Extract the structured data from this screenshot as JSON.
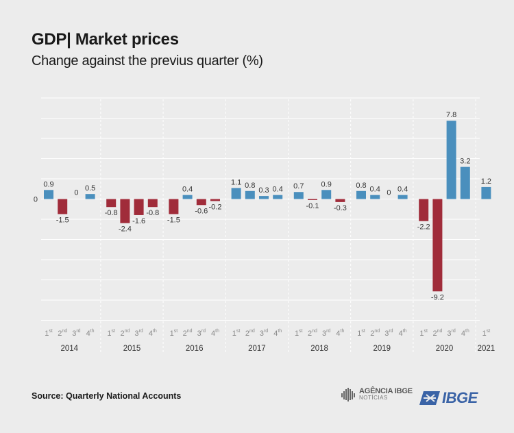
{
  "header": {
    "title": "GDP| Market prices",
    "subtitle": "Change against the previus quarter (%)"
  },
  "footer": {
    "source": "Source: Quarterly National Accounts",
    "agencia_name": "AGÊNCIA IBGE",
    "agencia_sub": "NOTÍCIAS",
    "ibge_logo_text": "IBGE"
  },
  "colors": {
    "positive": "#4a8fbd",
    "negative": "#a02c3a",
    "grid": "#ffffff",
    "text": "#333333",
    "axis_text": "#888888"
  },
  "chart_data": {
    "type": "bar",
    "title": "GDP| Market prices",
    "subtitle": "Change against the previus quarter (%)",
    "y_tick_labels": [
      "0"
    ],
    "ylim": [
      -9.2,
      7.8
    ],
    "grid": true,
    "years": [
      {
        "label": "2014",
        "quarters": [
          {
            "q": "1",
            "sup": "st",
            "value": 0.9,
            "label": "0.9"
          },
          {
            "q": "2",
            "sup": "nd",
            "value": -1.5,
            "label": "-1.5"
          },
          {
            "q": "3",
            "sup": "rd",
            "value": 0,
            "label": "0"
          },
          {
            "q": "4",
            "sup": "th",
            "value": 0.5,
            "label": "0.5"
          }
        ]
      },
      {
        "label": "2015",
        "quarters": [
          {
            "q": "1",
            "sup": "st",
            "value": -0.8,
            "label": "-0.8"
          },
          {
            "q": "2",
            "sup": "nd",
            "value": -2.4,
            "label": "-2.4"
          },
          {
            "q": "3",
            "sup": "rd",
            "value": -1.6,
            "label": "-1.6"
          },
          {
            "q": "4",
            "sup": "th",
            "value": -0.8,
            "label": "-0.8"
          }
        ]
      },
      {
        "label": "2016",
        "quarters": [
          {
            "q": "1",
            "sup": "st",
            "value": -1.5,
            "label": "-1.5"
          },
          {
            "q": "2",
            "sup": "nd",
            "value": 0.4,
            "label": "0.4"
          },
          {
            "q": "3",
            "sup": "rd",
            "value": -0.6,
            "label": "-0.6"
          },
          {
            "q": "4",
            "sup": "th",
            "value": -0.2,
            "label": "-0.2"
          }
        ]
      },
      {
        "label": "2017",
        "quarters": [
          {
            "q": "1",
            "sup": "st",
            "value": 1.1,
            "label": "1.1"
          },
          {
            "q": "2",
            "sup": "nd",
            "value": 0.8,
            "label": "0.8"
          },
          {
            "q": "3",
            "sup": "rd",
            "value": 0.3,
            "label": "0.3"
          },
          {
            "q": "4",
            "sup": "th",
            "value": 0.4,
            "label": "0.4"
          }
        ]
      },
      {
        "label": "2018",
        "quarters": [
          {
            "q": "1",
            "sup": "st",
            "value": 0.7,
            "label": "0.7"
          },
          {
            "q": "2",
            "sup": "nd",
            "value": -0.1,
            "label": "-0.1"
          },
          {
            "q": "3",
            "sup": "rd",
            "value": 0.9,
            "label": "0.9"
          },
          {
            "q": "4",
            "sup": "th",
            "value": -0.3,
            "label": "-0.3"
          }
        ]
      },
      {
        "label": "2019",
        "quarters": [
          {
            "q": "1",
            "sup": "st",
            "value": 0.8,
            "label": "0.8"
          },
          {
            "q": "2",
            "sup": "nd",
            "value": 0.4,
            "label": "0.4"
          },
          {
            "q": "3",
            "sup": "rd",
            "value": 0,
            "label": "0"
          },
          {
            "q": "4",
            "sup": "th",
            "value": 0.4,
            "label": "0.4"
          }
        ]
      },
      {
        "label": "2020",
        "quarters": [
          {
            "q": "1",
            "sup": "st",
            "value": -2.2,
            "label": "-2.2"
          },
          {
            "q": "2",
            "sup": "nd",
            "value": -9.2,
            "label": "-9.2"
          },
          {
            "q": "3",
            "sup": "rd",
            "value": 7.8,
            "label": "7.8"
          },
          {
            "q": "4",
            "sup": "th",
            "value": 3.2,
            "label": "3.2"
          }
        ]
      },
      {
        "label": "2021",
        "quarters": [
          {
            "q": "1",
            "sup": "st",
            "value": 1.2,
            "label": "1.2"
          }
        ]
      }
    ]
  }
}
